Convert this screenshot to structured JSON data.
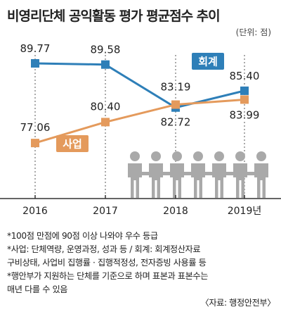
{
  "title": "비영리단체 공익활동 평가 평균점수 추이",
  "unit": "(단위: 점)",
  "chart_data": {
    "type": "line",
    "categories": [
      "2016",
      "2017",
      "2018",
      "2019년"
    ],
    "series": [
      {
        "name": "회계",
        "values": [
          89.77,
          89.58,
          82.72,
          85.4
        ],
        "labels": [
          "89.77",
          "89.58",
          "82.72",
          "85.40"
        ],
        "color": "#2e7fb8"
      },
      {
        "name": "사업",
        "values": [
          77.06,
          80.4,
          83.19,
          83.99
        ],
        "labels": [
          "77.06",
          "80.40",
          "83.19",
          "83.99"
        ],
        "color": "#e49a5c"
      }
    ],
    "grid": false,
    "legend": "inline labels"
  },
  "colors": {
    "people": "#a9a9a9",
    "axis": "#333333",
    "dash": "#555555"
  },
  "notes": [
    "*100점 만점에 90점 이상 나와야 우수 등급",
    "*사업: 단체역량, 운영과정, 성과 등 / 회계: 회계정산자료",
    "구비상태, 사업비 집행률 · 집행적정성, 전자증빙 사용률 등",
    "*행안부가 지원하는 단체를 기준으로 하며 표본과 표본수는",
    "매년 다를 수 있음"
  ],
  "source": "〈자료: 행정안전부〉"
}
